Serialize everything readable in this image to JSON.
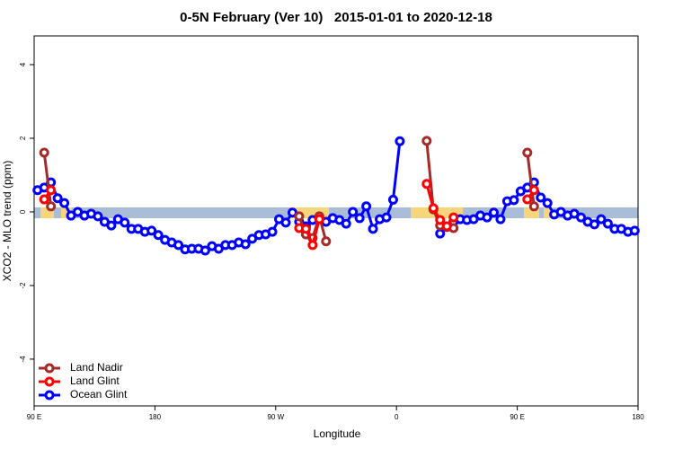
{
  "chart_data": {
    "type": "line",
    "title": "0-5N February (Ver 10)   2015-01-01 to 2020-12-18",
    "x_label": "Longitude",
    "y_label": "XCO2 - MLO trend (ppm)",
    "x": [
      92.5,
      97.5,
      102.5,
      107.5,
      112.5,
      117.5,
      122.5,
      127.5,
      132.5,
      137.5,
      142.5,
      147.5,
      152.5,
      157.5,
      162.5,
      167.5,
      172.5,
      177.5,
      182.5,
      187.5,
      192.5,
      197.5,
      202.5,
      207.5,
      212.5,
      217.5,
      222.5,
      227.5,
      232.5,
      237.5,
      242.5,
      247.5,
      252.5,
      257.5,
      262.5,
      267.5,
      272.5,
      277.5,
      282.5,
      287.5,
      292.5,
      297.5,
      302.5,
      307.5,
      312.5,
      317.5,
      322.5,
      327.5,
      332.5,
      337.5,
      342.5,
      347.5,
      352.5,
      357.5,
      362.5,
      367.5,
      372.5,
      377.5,
      382.5,
      387.5,
      392.5,
      397.5,
      402.5,
      407.5,
      412.5,
      417.5,
      422.5,
      427.5,
      432.5,
      437.5,
      442.5,
      447.5,
      452.5,
      457.5,
      462.5,
      467.5,
      472.5,
      477.5,
      482.5,
      487.5,
      492.5,
      497.5,
      502.5,
      507.5,
      512.5,
      517.5,
      522.5,
      527.5,
      532.5,
      537.5
    ],
    "series": [
      {
        "name": "Ocean Glint",
        "color": "#0000ff",
        "values": [
          0.59,
          0.66,
          0.8,
          0.37,
          0.24,
          -0.1,
          0.0,
          -0.1,
          -0.05,
          -0.12,
          -0.27,
          -0.37,
          -0.2,
          -0.29,
          -0.46,
          -0.46,
          -0.54,
          -0.51,
          -0.63,
          -0.76,
          -0.83,
          -0.9,
          -1.02,
          -1.0,
          -1.0,
          -1.05,
          -0.93,
          -1.0,
          -0.9,
          -0.9,
          -0.83,
          -0.88,
          -0.73,
          -0.63,
          -0.61,
          -0.54,
          -0.2,
          -0.29,
          -0.02,
          -0.27,
          -0.39,
          -0.22,
          -0.2,
          -0.27,
          -0.17,
          -0.22,
          -0.32,
          0.0,
          -0.17,
          0.15,
          -0.46,
          -0.2,
          -0.15,
          0.33,
          1.92,
          null,
          null,
          null,
          null,
          null,
          -0.59,
          -0.41,
          -0.27,
          -0.2,
          -0.22,
          -0.2,
          -0.1,
          -0.15,
          -0.02,
          -0.2,
          0.29,
          0.32,
          0.56,
          0.66,
          0.8,
          0.39,
          0.24,
          -0.07,
          0.0,
          -0.1,
          -0.05,
          -0.15,
          -0.27,
          -0.34,
          -0.2,
          -0.32,
          -0.46,
          -0.46,
          -0.54,
          -0.51
        ]
      },
      {
        "name": "Land Nadir",
        "color": "#a52a2a",
        "values": [
          null,
          1.61,
          0.15,
          null,
          null,
          null,
          null,
          null,
          null,
          null,
          null,
          null,
          null,
          null,
          null,
          null,
          null,
          null,
          null,
          null,
          null,
          null,
          null,
          null,
          null,
          null,
          null,
          null,
          null,
          null,
          null,
          null,
          null,
          null,
          null,
          null,
          null,
          null,
          null,
          -0.12,
          -0.61,
          -0.71,
          -0.12,
          -0.8,
          null,
          null,
          null,
          null,
          null,
          null,
          null,
          null,
          null,
          null,
          null,
          null,
          null,
          null,
          1.93,
          0.07,
          -0.37,
          -0.4,
          -0.44,
          null,
          null,
          null,
          null,
          null,
          null,
          null,
          null,
          null,
          null,
          1.61,
          0.15,
          null,
          null,
          null,
          null,
          null,
          null,
          null,
          null,
          null,
          null,
          null,
          null,
          null,
          null,
          null
        ]
      },
      {
        "name": "Land Glint",
        "color": "#ff0000",
        "values": [
          null,
          0.34,
          0.59,
          null,
          null,
          null,
          null,
          null,
          null,
          null,
          null,
          null,
          null,
          null,
          null,
          null,
          null,
          null,
          null,
          null,
          null,
          null,
          null,
          null,
          null,
          null,
          null,
          null,
          null,
          null,
          null,
          null,
          null,
          null,
          null,
          null,
          null,
          null,
          null,
          -0.44,
          -0.46,
          -0.9,
          -0.2,
          null,
          null,
          null,
          null,
          null,
          null,
          null,
          null,
          null,
          null,
          null,
          null,
          null,
          null,
          null,
          0.76,
          0.1,
          -0.22,
          -0.39,
          -0.15,
          null,
          null,
          null,
          null,
          null,
          null,
          null,
          null,
          null,
          null,
          0.34,
          0.59,
          null,
          null,
          null,
          null,
          null,
          null,
          null,
          null,
          null,
          null,
          null,
          null,
          null,
          null,
          null
        ]
      }
    ],
    "legend_order": [
      1,
      2,
      0
    ],
    "legend": "lower left",
    "xlim": [
      90,
      540
    ],
    "xticks": [
      {
        "value": 90,
        "label": "90 E"
      },
      180,
      {
        "value": 270,
        "label": "90 W"
      },
      {
        "value": 360,
        "label": "0"
      },
      {
        "value": 450,
        "label": "90 E"
      },
      {
        "value": 540,
        "label": "180"
      }
    ],
    "ylim": [
      -5.27,
      4.78
    ],
    "yticks": [
      -4,
      -2,
      0,
      2,
      4
    ]
  }
}
